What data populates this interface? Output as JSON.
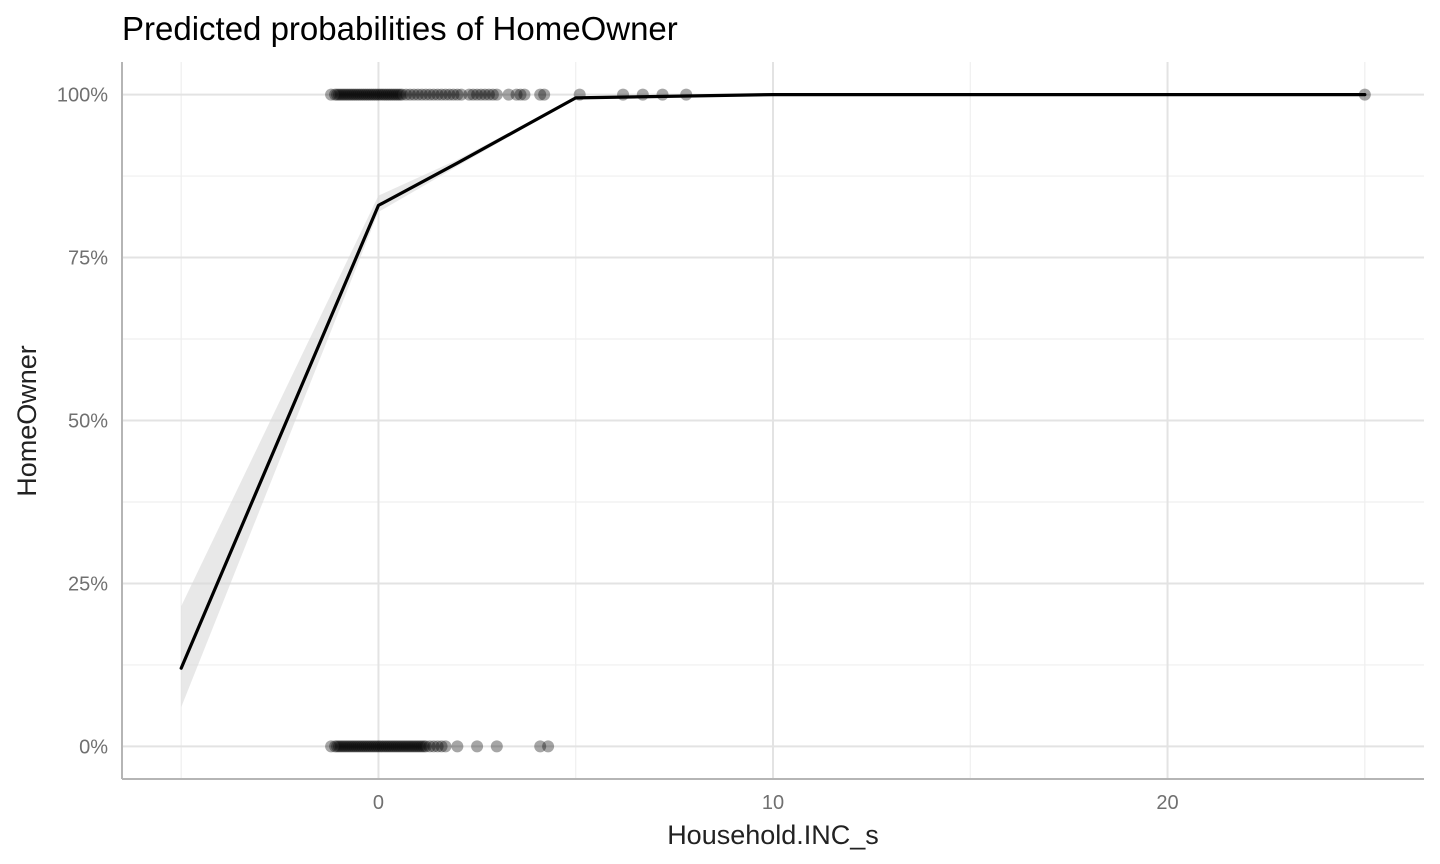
{
  "chart_data": {
    "type": "line",
    "title": "Predicted probabilities of HomeOwner",
    "xlabel": "Household.INC_s",
    "ylabel": "HomeOwner",
    "xlim": [
      -6.5,
      26.5
    ],
    "ylim": [
      -0.05,
      1.05
    ],
    "x_ticks": [
      0,
      10,
      20
    ],
    "x_tick_labels": [
      "0",
      "10",
      "20"
    ],
    "x_minor_ticks": [
      -5,
      5,
      15,
      25
    ],
    "y_ticks": [
      0,
      0.25,
      0.5,
      0.75,
      1
    ],
    "y_tick_labels": [
      "0%",
      "25%",
      "50%",
      "75%",
      "100%"
    ],
    "y_minor_ticks": [
      0.125,
      0.375,
      0.625,
      0.875
    ],
    "grid": true,
    "series": [
      {
        "type": "line",
        "x": [
          -5,
          0,
          2,
          5,
          10,
          25
        ],
        "y": [
          0.12,
          0.83,
          0.895,
          0.995,
          1.0,
          1.0
        ],
        "ci_low": [
          0.06,
          0.82,
          0.89,
          0.994,
          1.0,
          1.0
        ],
        "ci_high": [
          0.215,
          0.845,
          0.9,
          0.996,
          1.0,
          1.0
        ]
      },
      {
        "type": "scatter",
        "x": [
          -1.2,
          -1.1,
          -1.05,
          -1.0,
          -0.95,
          -0.9,
          -0.85,
          -0.8,
          -0.75,
          -0.7,
          -0.65,
          -0.6,
          -0.55,
          -0.5,
          -0.45,
          -0.4,
          -0.35,
          -0.3,
          -0.25,
          -0.2,
          -0.15,
          -0.1,
          -0.05,
          0.0,
          0.05,
          0.1,
          0.15,
          0.2,
          0.25,
          0.3,
          0.35,
          0.4,
          0.45,
          0.5,
          0.55,
          0.6,
          0.7,
          0.8,
          0.9,
          1.0,
          1.1,
          1.2,
          1.3,
          1.4,
          1.5,
          1.6,
          1.7,
          1.8,
          1.9,
          2.0,
          2.1,
          2.3,
          2.4,
          2.5,
          2.6,
          2.7,
          2.8,
          2.9,
          3.0,
          3.3,
          3.5,
          3.6,
          3.7,
          4.1,
          4.2,
          5.1,
          6.2,
          6.7,
          7.2,
          7.8,
          25.0
        ],
        "y": [
          1,
          1,
          1,
          1,
          1,
          1,
          1,
          1,
          1,
          1,
          1,
          1,
          1,
          1,
          1,
          1,
          1,
          1,
          1,
          1,
          1,
          1,
          1,
          1,
          1,
          1,
          1,
          1,
          1,
          1,
          1,
          1,
          1,
          1,
          1,
          1,
          1,
          1,
          1,
          1,
          1,
          1,
          1,
          1,
          1,
          1,
          1,
          1,
          1,
          1,
          1,
          1,
          1,
          1,
          1,
          1,
          1,
          1,
          1,
          1,
          1,
          1,
          1,
          1,
          1,
          1,
          1,
          1,
          1,
          1,
          1
        ]
      },
      {
        "type": "scatter",
        "x": [
          -1.2,
          -1.1,
          -1.05,
          -1.0,
          -0.95,
          -0.9,
          -0.85,
          -0.8,
          -0.75,
          -0.7,
          -0.65,
          -0.6,
          -0.55,
          -0.5,
          -0.45,
          -0.4,
          -0.35,
          -0.3,
          -0.25,
          -0.2,
          -0.15,
          -0.1,
          -0.05,
          0.0,
          0.05,
          0.1,
          0.15,
          0.2,
          0.25,
          0.3,
          0.35,
          0.4,
          0.45,
          0.5,
          0.55,
          0.6,
          0.65,
          0.7,
          0.75,
          0.8,
          0.85,
          0.9,
          0.95,
          1.0,
          1.05,
          1.1,
          1.15,
          1.2,
          1.3,
          1.4,
          1.5,
          1.6,
          1.7,
          2.0,
          2.5,
          3.0,
          4.1,
          4.3
        ],
        "y": [
          0,
          0,
          0,
          0,
          0,
          0,
          0,
          0,
          0,
          0,
          0,
          0,
          0,
          0,
          0,
          0,
          0,
          0,
          0,
          0,
          0,
          0,
          0,
          0,
          0,
          0,
          0,
          0,
          0,
          0,
          0,
          0,
          0,
          0,
          0,
          0,
          0,
          0,
          0,
          0,
          0,
          0,
          0,
          0,
          0,
          0,
          0,
          0,
          0,
          0,
          0,
          0,
          0,
          0,
          0,
          0,
          0,
          0
        ]
      }
    ]
  }
}
